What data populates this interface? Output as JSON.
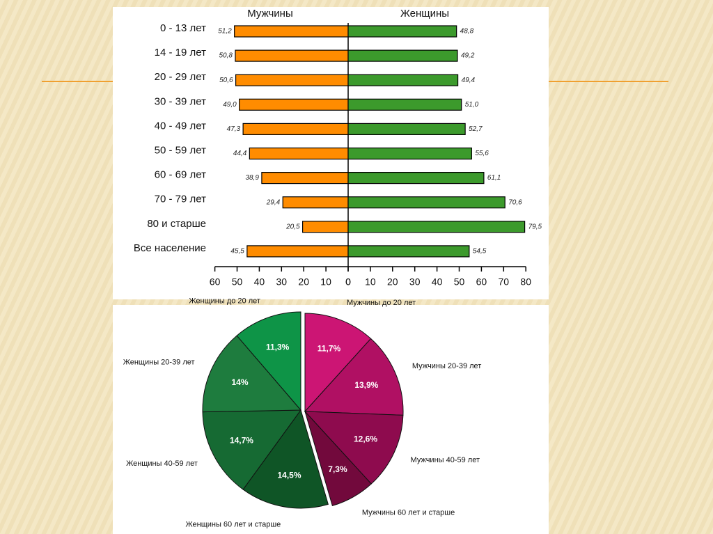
{
  "chart_data": [
    {
      "type": "butterfly-bar",
      "categories": [
        "0 - 13 лет",
        "14 - 19 лет",
        "20 - 29 лет",
        "30 - 39 лет",
        "40 - 49 лет",
        "50 - 59 лет",
        "60 - 69 лет",
        "70 - 79 лет",
        "80 и старше",
        "Все население"
      ],
      "series": [
        {
          "name": "Мужчины",
          "color": "#ff8c00",
          "axis": "x2",
          "values": [
            51.2,
            50.8,
            50.6,
            49.0,
            47.3,
            44.4,
            38.9,
            29.4,
            20.5,
            45.5
          ],
          "value_labels": [
            "51,2",
            "50,8",
            "50,6",
            "49,0",
            "47,3",
            "44,4",
            "38,9",
            "29,4",
            "20,5",
            "45,5"
          ]
        },
        {
          "name": "Женщины",
          "color": "#3c9a2c",
          "values": [
            48.8,
            49.2,
            49.4,
            51.0,
            52.7,
            55.6,
            61.1,
            70.6,
            79.5,
            54.5
          ],
          "value_labels": [
            "48,8",
            "49,2",
            "49,4",
            "51,0",
            "52,7",
            "55,6",
            "61,1",
            "70,6",
            "79,5",
            "54,5"
          ]
        }
      ],
      "x2lim": [
        0,
        60
      ],
      "x2ticks": [
        0,
        10,
        20,
        30,
        40,
        50,
        60
      ],
      "xlim": [
        0,
        80
      ],
      "xticks": [
        0,
        10,
        20,
        30,
        40,
        50,
        60,
        70,
        80
      ]
    },
    {
      "type": "pie",
      "labels": [
        "Мужчины до 20 лет",
        "Мужчины 20-39 лет",
        "Мужчины 40-59 лет",
        "Мужчины 60 лет и старше",
        "Женщины 60 лет и старше",
        "Женщины 40-59 лет",
        "Женщины 20-39 лет",
        "Женщины до 20 лет"
      ],
      "values": [
        11.7,
        13.9,
        12.6,
        7.3,
        14.5,
        14.7,
        14,
        11.3
      ],
      "value_labels": [
        "11,7%",
        "13,9%",
        "12,6%",
        "7,3%",
        "14,5%",
        "14,7%",
        "14%",
        "11,3%"
      ],
      "colors": [
        "#cc1574",
        "#b01063",
        "#8e0b4e",
        "#72093c",
        "#0f5526",
        "#166a33",
        "#1e7c3e",
        "#0e9447"
      ]
    }
  ]
}
